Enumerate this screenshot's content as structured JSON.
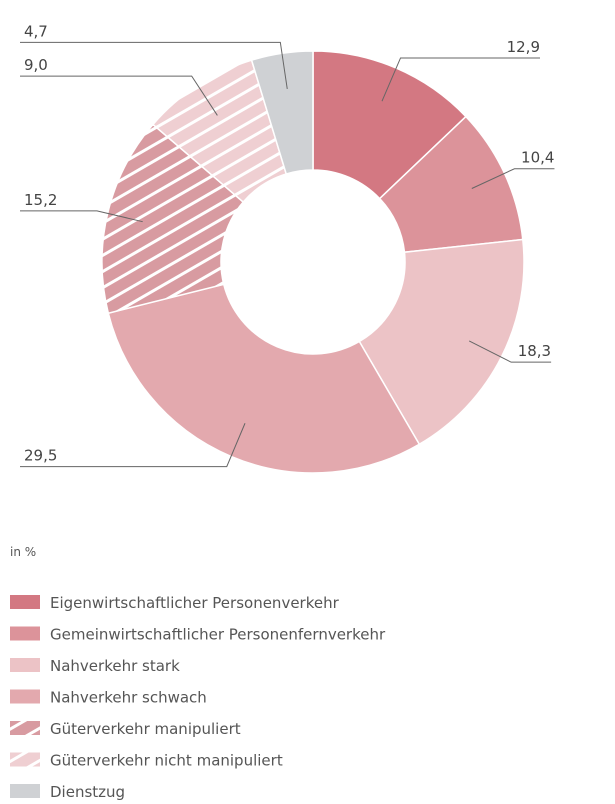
{
  "chart_data": {
    "type": "donut",
    "subtitle": "in %",
    "categories": [
      "Eigenwirtschaftlicher Personenverkehr",
      "Gemeinwirtschaftlicher Personenfernverkehr",
      "Nahverkehr stark",
      "Nahverkehr schwach",
      "Güterverkehr manipuliert",
      "Güterverkehr nicht manipuliert",
      "Dienstzug"
    ],
    "values": [
      12.9,
      10.4,
      18.3,
      29.5,
      15.2,
      9.0,
      4.7
    ],
    "value_labels": [
      "12,9",
      "10,4",
      "18,3",
      "29,5",
      "15,2",
      "9,0",
      "4,7"
    ],
    "colors": [
      "#d37882",
      "#dc939a",
      "#ecc3c6",
      "#e3a9ae",
      "#d89ba1",
      "#efcfd2",
      "#cfd1d4"
    ],
    "hatched": [
      false,
      false,
      false,
      false,
      true,
      true,
      false
    ]
  }
}
